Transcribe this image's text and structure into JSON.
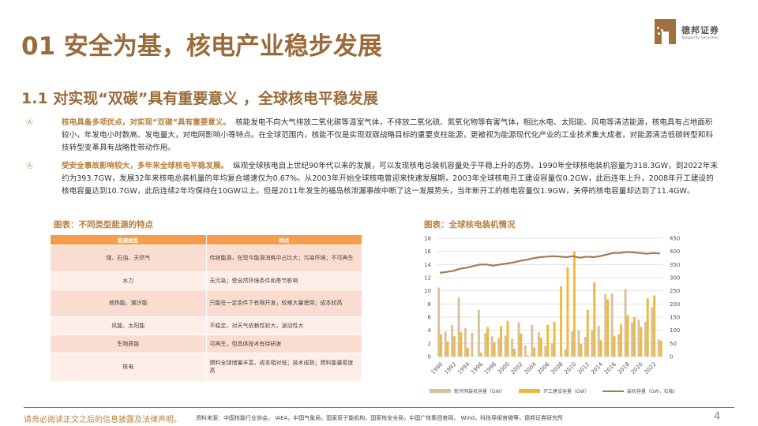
{
  "header": {
    "title": "01 安全为基，核电产业稳步发展",
    "subtitle": "1.1 对实现“双碳”具有重要意义 ，全球核电平稳发展",
    "logo": {
      "cn": "德邦证券",
      "en": "Topsperity Securities",
      "icon": "leopard-logo-icon",
      "color": "#a0703f"
    }
  },
  "bullets": [
    {
      "icon": "bullet-icon",
      "lead": "核电具备多项优点，对实现“双碳”具有重要意义。",
      "body": "核能发电不向大气排放二氧化碳等温室气体，不排放二氧化硫、氮氧化物等有害气体，相比水电、太阳能、风电等清洁能源，核电具有占地面积较小，年发电小时数高、发电量大，对电网影响小等特点。在全球范围内，核能不仅是实现双碳战略目标的重要支柱能源，更被视为能源现代化产业的工业技术集大成者，对能源清洁低碳转型和科技转型变革具有战略性带动作用。"
    },
    {
      "icon": "bullet-icon",
      "lead": "受安全事故影响较大，多年来全球核电平稳发展。",
      "body": "纵观全球核电自上世纪90年代以来的发展，可以发现核电总装机容量处于平稳上升的态势。1990年全球核电装机容量为318.3GW，到2022年末约为393.7GW，发展32年来核电总装机量的年均复合增速仅为0.67%。从2003年开始全球核电曾迎来快速发展期，2003年全球核电开工建设容量仅0.2GW，此后连年上升，2008年开工建设的核电容量达到10.7GW，此后连续2年均保持在10GW以上。但是2011年发生的福岛核泄漏事故中断了这一发展势头，当年新开工的核电容量仅1.9GW，关停的核电容量却达到了11.4GW。"
    }
  ],
  "table_section": {
    "caption": "图表：不同类型能源的特点",
    "headers": [
      "能源类型",
      "特点"
    ],
    "rows": [
      {
        "type": "煤、石油、天然气",
        "feature": "传统能源，在现今能源消耗中占比大；污染环境；不可再生"
      },
      {
        "type": "水力",
        "feature": "无污染；受自然环境条件和季节影响"
      },
      {
        "type": "地热能、潮汐能",
        "feature": "只能在一定条件下有限开发，较难大量使用；成本较高"
      },
      {
        "type": "风能、太阳能",
        "feature": "不稳定，对天气依赖性较大，波动性大"
      },
      {
        "type": "生物质能",
        "feature": "可再生，但具体技术有待研发"
      },
      {
        "type": "核电",
        "feature": "燃料全球储量丰富，成本相对低；技术成熟；燃料能量密度高"
      }
    ],
    "colors": {
      "header": "#f59c4d",
      "row_dark": "#fbdcd0",
      "row_light": "#fdeee8"
    }
  },
  "chart_section": {
    "caption": "图表：全球核电装机情况",
    "left_ticks": [
      "0",
      "2",
      "4",
      "6",
      "8",
      "10",
      "12",
      "14",
      "16",
      "18"
    ],
    "right_ticks": [
      "0",
      "50",
      "100",
      "150",
      "200",
      "250",
      "300",
      "350",
      "400",
      "450"
    ],
    "x_tick_labels": [
      "1990",
      "1992",
      "1994",
      "1996",
      "1998",
      "2000",
      "2002",
      "2004",
      "2006",
      "2008",
      "2010",
      "2012",
      "2014",
      "2016",
      "2018",
      "2020",
      "2022"
    ],
    "legend": [
      "新并网装机容量（GW）",
      "开工建设容量（GW）",
      "装机容量（GW，右轴）"
    ]
  },
  "chart_data": {
    "type": "bar",
    "title": "全球核电装机情况",
    "xlabel": "",
    "ylabel": "GW",
    "y2label": "GW（右轴）",
    "ylim": [
      0,
      18
    ],
    "y2lim": [
      0,
      450
    ],
    "grid": true,
    "legend_position": "bottom",
    "categories": [
      "1990",
      "1991",
      "1992",
      "1993",
      "1994",
      "1995",
      "1996",
      "1997",
      "1998",
      "1999",
      "2000",
      "2001",
      "2002",
      "2003",
      "2004",
      "2005",
      "2006",
      "2007",
      "2008",
      "2009",
      "2010",
      "2011",
      "2012",
      "2013",
      "2014",
      "2015",
      "2016",
      "2017",
      "2018",
      "2019",
      "2020",
      "2021",
      "2022",
      "2023"
    ],
    "series": [
      {
        "name": "新并网装机容量（GW）",
        "type": "bar",
        "axis": "left",
        "color": "#d6c29a",
        "values": [
          10.5,
          3.8,
          4.8,
          9.0,
          4.3,
          3.6,
          7.1,
          3.6,
          3.1,
          2.8,
          3.2,
          2.7,
          5.2,
          1.7,
          4.8,
          3.7,
          1.6,
          2.0,
          0,
          1.1,
          3.8,
          4.0,
          3.0,
          4.1,
          4.7,
          9.5,
          9.6,
          3.4,
          10.3,
          5.2,
          5.6,
          5.3,
          7.5,
          2.6
        ]
      },
      {
        "name": "开工建设容量（GW）",
        "type": "bar",
        "axis": "left",
        "color": "#f4b63a",
        "values": [
          3.4,
          2.3,
          3.1,
          3.7,
          1.3,
          0,
          0.6,
          4.5,
          2.2,
          4.6,
          5.4,
          1.2,
          3.5,
          0.2,
          1.4,
          2.9,
          4.8,
          5.3,
          10.7,
          13.6,
          16.0,
          1.9,
          7.1,
          11.3,
          2.5,
          8.7,
          3.1,
          4.9,
          6.3,
          6.0,
          4.5,
          8.9,
          9.3,
          2.4
        ]
      },
      {
        "name": "装机容量（GW，右轴）",
        "type": "line",
        "axis": "right",
        "color": "#a57a4f",
        "values": [
          318.3,
          322,
          326,
          334,
          338,
          344,
          350,
          350,
          346,
          350,
          354,
          358,
          364,
          368,
          374,
          378,
          380,
          382,
          380,
          378,
          382,
          376,
          380,
          378,
          382,
          388,
          394,
          394,
          398,
          396,
          394,
          391,
          393.7,
          392
        ]
      }
    ]
  },
  "footer": {
    "disclaimer": "请务必阅读正文之后的信息披露及法律声明。",
    "source": "资料来源：中国核能行业协会， IAEA，中国气象局，国家原子能机构，国家核安全局，中国广核集团官网， Wind，科技导报官微等，德邦证券研究所",
    "page": "4"
  }
}
